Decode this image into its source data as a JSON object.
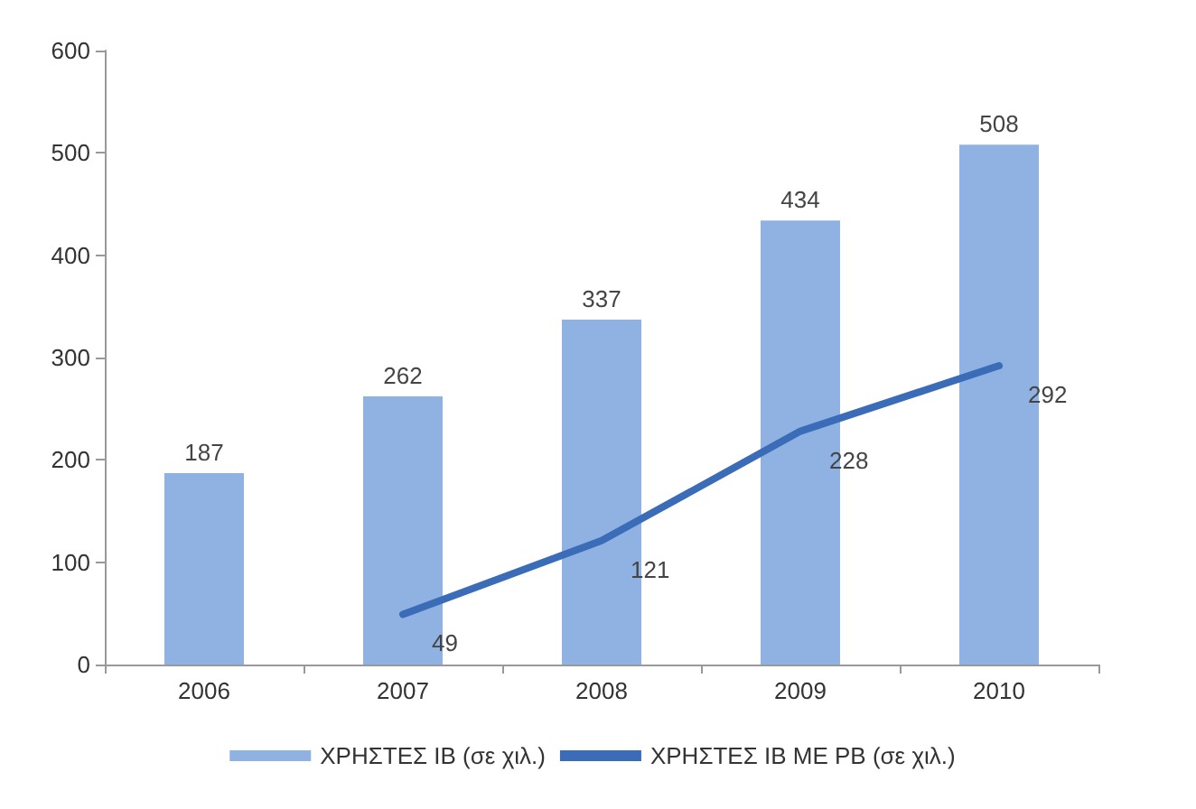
{
  "chart_data": {
    "type": "bar",
    "categories": [
      "2006",
      "2007",
      "2008",
      "2009",
      "2010"
    ],
    "series": [
      {
        "name": "ΧΡΗΣΤΕΣ ΙΒ (σε χιλ.)",
        "color": "#8fb2e3",
        "values": [
          187,
          262,
          337,
          434,
          508
        ]
      },
      {
        "name": "ΧΡΗΣΤΕΣ ΙΒ ΜΕ ΡΒ (σε χιλ.)",
        "type": "line",
        "color": "#3b6cb8",
        "values": [
          null,
          49,
          121,
          228,
          292
        ]
      }
    ],
    "ylim": [
      0,
      600
    ],
    "yticks": [
      0,
      100,
      200,
      300,
      400,
      500,
      600
    ],
    "grid": false,
    "legend": "bottom",
    "data_labels": true,
    "marker": "none"
  }
}
